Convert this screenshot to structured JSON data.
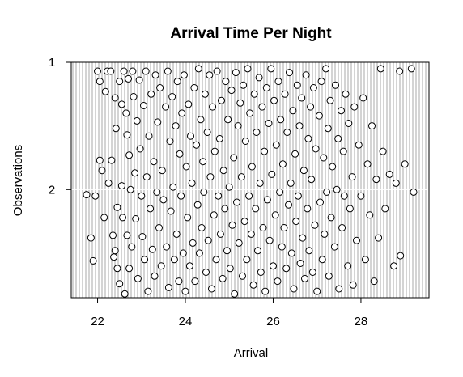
{
  "chart_data": {
    "type": "scatter",
    "title": "Arrival Time Per Night",
    "xlabel": "Arrival",
    "ylabel": "Observations",
    "xlim": [
      21.4,
      29.55
    ],
    "ylim": [
      2.85,
      1.0
    ],
    "x_ticks": [
      22,
      24,
      26,
      28
    ],
    "x_tick_labels": [
      "22",
      "24",
      "26",
      "28"
    ],
    "y_ticks": [
      1,
      2
    ],
    "y_tick_labels": [
      "1",
      "2"
    ],
    "grid": "vertical",
    "point_style": "open-circle",
    "points": [
      [
        21.75,
        2.04
      ],
      [
        21.85,
        2.38
      ],
      [
        21.9,
        2.56
      ],
      [
        21.95,
        2.05
      ],
      [
        22.0,
        1.07
      ],
      [
        22.05,
        1.15
      ],
      [
        22.05,
        1.77
      ],
      [
        22.1,
        1.85
      ],
      [
        22.15,
        2.22
      ],
      [
        22.18,
        1.23
      ],
      [
        22.22,
        1.07
      ],
      [
        22.25,
        1.95
      ],
      [
        22.3,
        1.07
      ],
      [
        22.32,
        1.77
      ],
      [
        22.35,
        2.36
      ],
      [
        22.37,
        2.53
      ],
      [
        22.4,
        1.28
      ],
      [
        22.4,
        2.48
      ],
      [
        22.42,
        1.52
      ],
      [
        22.45,
        2.14
      ],
      [
        22.45,
        2.62
      ],
      [
        22.5,
        1.15
      ],
      [
        22.5,
        2.74
      ],
      [
        22.55,
        1.33
      ],
      [
        22.55,
        1.97
      ],
      [
        22.57,
        2.22
      ],
      [
        22.6,
        1.07
      ],
      [
        22.62,
        2.82
      ],
      [
        22.65,
        1.4
      ],
      [
        22.67,
        1.57
      ],
      [
        22.67,
        2.36
      ],
      [
        22.7,
        1.13
      ],
      [
        22.72,
        1.73
      ],
      [
        22.72,
        2.62
      ],
      [
        22.75,
        2.0
      ],
      [
        22.78,
        2.45
      ],
      [
        22.8,
        1.07
      ],
      [
        22.82,
        1.27
      ],
      [
        22.85,
        1.87
      ],
      [
        22.87,
        2.23
      ],
      [
        22.9,
        1.46
      ],
      [
        22.92,
        2.7
      ],
      [
        22.95,
        1.14
      ],
      [
        22.97,
        1.68
      ],
      [
        23.0,
        2.05
      ],
      [
        23.02,
        2.37
      ],
      [
        23.05,
        1.34
      ],
      [
        23.07,
        2.55
      ],
      [
        23.1,
        1.07
      ],
      [
        23.12,
        1.9
      ],
      [
        23.15,
        2.8
      ],
      [
        23.17,
        1.58
      ],
      [
        23.2,
        2.15
      ],
      [
        23.22,
        1.25
      ],
      [
        23.25,
        2.47
      ],
      [
        23.28,
        1.78
      ],
      [
        23.3,
        2.68
      ],
      [
        23.32,
        1.1
      ],
      [
        23.35,
        2.02
      ],
      [
        23.37,
        1.47
      ],
      [
        23.4,
        2.3
      ],
      [
        23.42,
        1.2
      ],
      [
        23.45,
        2.6
      ],
      [
        23.47,
        1.85
      ],
      [
        23.5,
        2.08
      ],
      [
        23.55,
        1.35
      ],
      [
        23.57,
        2.45
      ],
      [
        23.6,
        1.07
      ],
      [
        23.62,
        2.77
      ],
      [
        23.65,
        1.62
      ],
      [
        23.67,
        2.17
      ],
      [
        23.7,
        1.27
      ],
      [
        23.72,
        1.98
      ],
      [
        23.75,
        2.55
      ],
      [
        23.78,
        1.5
      ],
      [
        23.8,
        2.35
      ],
      [
        23.82,
        1.15
      ],
      [
        23.85,
        2.72
      ],
      [
        23.87,
        1.72
      ],
      [
        23.9,
        2.05
      ],
      [
        23.92,
        1.4
      ],
      [
        23.95,
        2.5
      ],
      [
        23.97,
        1.1
      ],
      [
        24.0,
        2.8
      ],
      [
        24.02,
        1.82
      ],
      [
        24.05,
        2.22
      ],
      [
        24.07,
        1.33
      ],
      [
        24.1,
        2.6
      ],
      [
        24.12,
        1.58
      ],
      [
        24.15,
        1.95
      ],
      [
        24.17,
        2.42
      ],
      [
        24.2,
        1.2
      ],
      [
        24.22,
        2.72
      ],
      [
        24.25,
        1.65
      ],
      [
        24.28,
        2.12
      ],
      [
        24.3,
        1.05
      ],
      [
        24.32,
        2.5
      ],
      [
        24.35,
        1.45
      ],
      [
        24.37,
        2.3
      ],
      [
        24.4,
        1.78
      ],
      [
        24.42,
        2.02
      ],
      [
        24.45,
        1.25
      ],
      [
        24.47,
        2.65
      ],
      [
        24.5,
        1.55
      ],
      [
        24.52,
        2.4
      ],
      [
        24.55,
        1.1
      ],
      [
        24.57,
        1.9
      ],
      [
        24.6,
        2.78
      ],
      [
        24.62,
        1.35
      ],
      [
        24.65,
        2.2
      ],
      [
        24.67,
        1.7
      ],
      [
        24.7,
        2.55
      ],
      [
        24.72,
        1.07
      ],
      [
        24.75,
        2.05
      ],
      [
        24.78,
        1.6
      ],
      [
        24.8,
        2.35
      ],
      [
        24.82,
        1.3
      ],
      [
        24.85,
        2.7
      ],
      [
        24.87,
        1.85
      ],
      [
        24.9,
        2.15
      ],
      [
        24.92,
        1.15
      ],
      [
        24.95,
        2.48
      ],
      [
        24.97,
        1.45
      ],
      [
        25.0,
        1.98
      ],
      [
        25.02,
        2.62
      ],
      [
        25.05,
        1.22
      ],
      [
        25.07,
        2.28
      ],
      [
        25.1,
        1.75
      ],
      [
        25.12,
        2.82
      ],
      [
        25.15,
        1.08
      ],
      [
        25.17,
        2.1
      ],
      [
        25.2,
        1.5
      ],
      [
        25.22,
        2.42
      ],
      [
        25.25,
        1.32
      ],
      [
        25.28,
        1.9
      ],
      [
        25.3,
        2.68
      ],
      [
        25.32,
        1.18
      ],
      [
        25.35,
        2.25
      ],
      [
        25.37,
        1.62
      ],
      [
        25.4,
        2.55
      ],
      [
        25.42,
        1.05
      ],
      [
        25.45,
        2.05
      ],
      [
        25.47,
        1.4
      ],
      [
        25.5,
        2.35
      ],
      [
        25.52,
        1.82
      ],
      [
        25.55,
        2.75
      ],
      [
        25.57,
        1.25
      ],
      [
        25.6,
        2.15
      ],
      [
        25.62,
        1.55
      ],
      [
        25.65,
        2.48
      ],
      [
        25.68,
        1.12
      ],
      [
        25.7,
        1.95
      ],
      [
        25.72,
        2.65
      ],
      [
        25.75,
        1.35
      ],
      [
        25.77,
        2.3
      ],
      [
        25.8,
        1.7
      ],
      [
        25.82,
        2.8
      ],
      [
        25.85,
        1.2
      ],
      [
        25.87,
        2.08
      ],
      [
        25.9,
        1.48
      ],
      [
        25.92,
        2.4
      ],
      [
        25.95,
        1.05
      ],
      [
        25.97,
        1.88
      ],
      [
        26.0,
        2.6
      ],
      [
        26.02,
        1.3
      ],
      [
        26.05,
        2.2
      ],
      [
        26.07,
        1.65
      ],
      [
        26.1,
        2.72
      ],
      [
        26.12,
        1.15
      ],
      [
        26.15,
        2.02
      ],
      [
        26.17,
        1.45
      ],
      [
        26.2,
        2.45
      ],
      [
        26.22,
        1.8
      ],
      [
        26.25,
        2.3
      ],
      [
        26.27,
        1.25
      ],
      [
        26.3,
        2.62
      ],
      [
        26.32,
        1.55
      ],
      [
        26.35,
        2.12
      ],
      [
        26.37,
        1.08
      ],
      [
        26.4,
        1.95
      ],
      [
        26.42,
        2.5
      ],
      [
        26.45,
        1.38
      ],
      [
        26.47,
        2.78
      ],
      [
        26.5,
        1.72
      ],
      [
        26.52,
        2.25
      ],
      [
        26.55,
        1.18
      ],
      [
        26.57,
        2.05
      ],
      [
        26.6,
        1.5
      ],
      [
        26.62,
        2.58
      ],
      [
        26.65,
        1.28
      ],
      [
        26.67,
        2.38
      ],
      [
        26.7,
        1.85
      ],
      [
        26.72,
        2.7
      ],
      [
        26.75,
        1.1
      ],
      [
        26.78,
        2.15
      ],
      [
        26.8,
        1.6
      ],
      [
        26.82,
        2.48
      ],
      [
        26.85,
        1.35
      ],
      [
        26.87,
        1.92
      ],
      [
        26.9,
        2.65
      ],
      [
        26.92,
        1.2
      ],
      [
        26.95,
        2.28
      ],
      [
        26.97,
        1.68
      ],
      [
        27.0,
        2.8
      ],
      [
        27.05,
        1.42
      ],
      [
        27.07,
        2.1
      ],
      [
        27.1,
        1.15
      ],
      [
        27.12,
        2.55
      ],
      [
        27.15,
        1.75
      ],
      [
        27.17,
        2.35
      ],
      [
        27.2,
        1.05
      ],
      [
        27.22,
        2.02
      ],
      [
        27.25,
        1.52
      ],
      [
        27.27,
        2.68
      ],
      [
        27.3,
        1.3
      ],
      [
        27.32,
        2.22
      ],
      [
        27.35,
        1.82
      ],
      [
        27.4,
        2.45
      ],
      [
        27.42,
        1.18
      ],
      [
        27.45,
        2.0
      ],
      [
        27.48,
        1.6
      ],
      [
        27.5,
        2.78
      ],
      [
        27.55,
        1.38
      ],
      [
        27.57,
        2.3
      ],
      [
        27.6,
        1.7
      ],
      [
        27.62,
        2.05
      ],
      [
        27.65,
        1.25
      ],
      [
        27.7,
        2.6
      ],
      [
        27.72,
        1.48
      ],
      [
        27.75,
        2.15
      ],
      [
        27.8,
        1.9
      ],
      [
        27.82,
        2.75
      ],
      [
        27.85,
        1.35
      ],
      [
        27.9,
        2.4
      ],
      [
        27.95,
        1.65
      ],
      [
        28.0,
        2.05
      ],
      [
        28.05,
        1.28
      ],
      [
        28.1,
        2.55
      ],
      [
        28.15,
        1.8
      ],
      [
        28.2,
        2.2
      ],
      [
        28.25,
        1.5
      ],
      [
        28.3,
        2.72
      ],
      [
        28.35,
        1.92
      ],
      [
        28.4,
        2.38
      ],
      [
        28.45,
        1.05
      ],
      [
        28.5,
        1.7
      ],
      [
        28.55,
        2.15
      ],
      [
        28.65,
        1.88
      ],
      [
        28.75,
        2.6
      ],
      [
        28.8,
        1.95
      ],
      [
        28.88,
        1.07
      ],
      [
        28.9,
        2.52
      ],
      [
        29.0,
        1.8
      ],
      [
        29.15,
        1.05
      ],
      [
        29.2,
        2.02
      ]
    ]
  }
}
